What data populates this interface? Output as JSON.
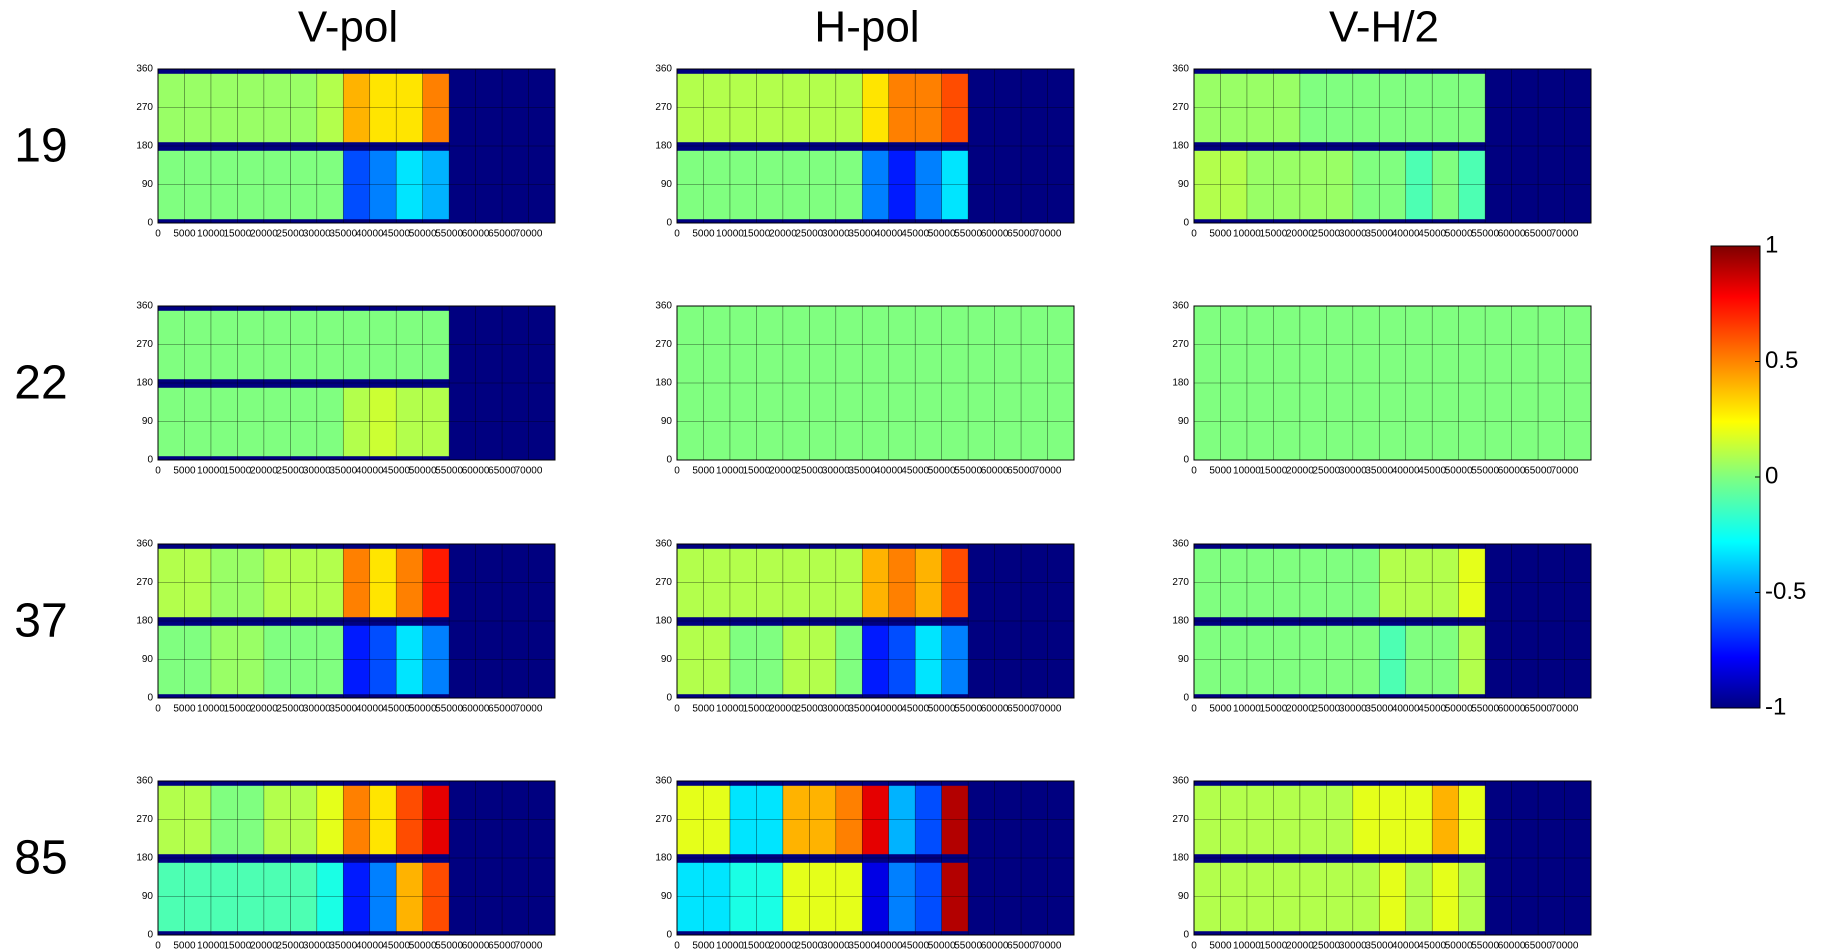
{
  "column_titles": [
    "V-pol",
    "H-pol",
    "V-H/2"
  ],
  "row_labels": [
    "19",
    "22",
    "37",
    "85"
  ],
  "colorbar": {
    "type": "colorbar",
    "lim": [
      -1,
      1
    ],
    "ticks": [
      1,
      0.5,
      0,
      -0.5,
      -1
    ]
  },
  "chart_data": [
    {
      "type": "heatmap",
      "xlim": [
        0,
        75000
      ],
      "ylim": [
        0,
        360
      ],
      "xticks": [
        0,
        5000,
        10000,
        15000,
        20000,
        25000,
        30000,
        35000,
        40000,
        45000,
        50000,
        55000,
        60000,
        65000,
        70000
      ],
      "yticks": [
        0,
        90,
        180,
        270,
        360
      ],
      "grid": true,
      "x_edges": [
        0,
        10000,
        20000,
        30000,
        35000,
        40000,
        45000,
        50000,
        55000,
        75000
      ],
      "y_edges": [
        0,
        10,
        170,
        190,
        350,
        360
      ],
      "z": [
        [
          -1,
          -1,
          -1,
          -1,
          -1,
          -1,
          -1,
          -1,
          -1
        ],
        [
          0,
          0,
          0,
          0,
          -0.6,
          -0.5,
          -0.3,
          -0.4,
          -1
        ],
        [
          -1,
          -1,
          -1,
          -1,
          -1,
          -1,
          -1,
          -1,
          -1
        ],
        [
          0.05,
          0.05,
          0.05,
          0.1,
          0.4,
          0.3,
          0.3,
          0.5,
          -1
        ],
        [
          -1,
          -1,
          -1,
          -1,
          -1,
          -1,
          -1,
          -1,
          -1
        ]
      ]
    },
    {
      "type": "heatmap",
      "xlim": [
        0,
        75000
      ],
      "ylim": [
        0,
        360
      ],
      "xticks": [
        0,
        5000,
        10000,
        15000,
        20000,
        25000,
        30000,
        35000,
        40000,
        45000,
        50000,
        55000,
        60000,
        65000,
        70000
      ],
      "yticks": [
        0,
        90,
        180,
        270,
        360
      ],
      "grid": true,
      "x_edges": [
        0,
        10000,
        20000,
        30000,
        35000,
        40000,
        45000,
        50000,
        55000,
        75000
      ],
      "y_edges": [
        0,
        10,
        170,
        190,
        350,
        360
      ],
      "z": [
        [
          -1,
          -1,
          -1,
          -1,
          -1,
          -1,
          -1,
          -1,
          -1
        ],
        [
          0,
          0,
          0,
          0,
          -0.5,
          -0.7,
          -0.5,
          -0.3,
          -1
        ],
        [
          -1,
          -1,
          -1,
          -1,
          -1,
          -1,
          -1,
          -1,
          -1
        ],
        [
          0.1,
          0.1,
          0.1,
          0.1,
          0.3,
          0.5,
          0.5,
          0.6,
          -1
        ],
        [
          -1,
          -1,
          -1,
          -1,
          -1,
          -1,
          -1,
          -1,
          -1
        ]
      ]
    },
    {
      "type": "heatmap",
      "xlim": [
        0,
        75000
      ],
      "ylim": [
        0,
        360
      ],
      "xticks": [
        0,
        5000,
        10000,
        15000,
        20000,
        25000,
        30000,
        35000,
        40000,
        45000,
        50000,
        55000,
        60000,
        65000,
        70000
      ],
      "yticks": [
        0,
        90,
        180,
        270,
        360
      ],
      "grid": true,
      "x_edges": [
        0,
        10000,
        20000,
        30000,
        35000,
        40000,
        45000,
        50000,
        55000,
        75000
      ],
      "y_edges": [
        0,
        10,
        170,
        190,
        350,
        360
      ],
      "z": [
        [
          -1,
          -1,
          -1,
          -1,
          -1,
          -1,
          -1,
          -1,
          -1
        ],
        [
          0.1,
          0.05,
          0.05,
          0,
          0,
          -0.1,
          0,
          -0.1,
          -1
        ],
        [
          -1,
          -1,
          -1,
          -1,
          -1,
          -1,
          -1,
          -1,
          -1
        ],
        [
          0.05,
          0.05,
          0,
          0,
          0,
          0,
          0,
          0,
          -1
        ],
        [
          -1,
          -1,
          -1,
          -1,
          -1,
          -1,
          -1,
          -1,
          -1
        ]
      ]
    },
    {
      "type": "heatmap",
      "xlim": [
        0,
        75000
      ],
      "ylim": [
        0,
        360
      ],
      "xticks": [
        0,
        5000,
        10000,
        15000,
        20000,
        25000,
        30000,
        35000,
        40000,
        45000,
        50000,
        55000,
        60000,
        65000,
        70000
      ],
      "yticks": [
        0,
        90,
        180,
        270,
        360
      ],
      "grid": true,
      "x_edges": [
        0,
        10000,
        20000,
        30000,
        35000,
        40000,
        45000,
        50000,
        55000,
        75000
      ],
      "y_edges": [
        0,
        10,
        170,
        190,
        350,
        360
      ],
      "z": [
        [
          -1,
          -1,
          -1,
          -1,
          -1,
          -1,
          -1,
          -1,
          -1
        ],
        [
          0,
          0,
          0,
          0,
          0.1,
          0.15,
          0.1,
          0.1,
          -1
        ],
        [
          -1,
          -1,
          -1,
          -1,
          -1,
          -1,
          -1,
          -1,
          -1
        ],
        [
          0,
          0,
          0,
          0,
          0,
          0,
          0,
          0,
          -1
        ],
        [
          -1,
          -1,
          -1,
          -1,
          -1,
          -1,
          -1,
          -1,
          -1
        ]
      ]
    },
    {
      "type": "heatmap",
      "xlim": [
        0,
        75000
      ],
      "ylim": [
        0,
        360
      ],
      "xticks": [
        0,
        5000,
        10000,
        15000,
        20000,
        25000,
        30000,
        35000,
        40000,
        45000,
        50000,
        55000,
        60000,
        65000,
        70000
      ],
      "yticks": [
        0,
        90,
        180,
        270,
        360
      ],
      "grid": true,
      "x_edges": [
        0,
        10000,
        20000,
        30000,
        35000,
        40000,
        45000,
        50000,
        55000,
        75000
      ],
      "y_edges": [
        0,
        10,
        170,
        190,
        350,
        360
      ],
      "z": [
        [
          0,
          0,
          0,
          0,
          0,
          0,
          0,
          0,
          0
        ],
        [
          0,
          0,
          0,
          0,
          0,
          0,
          0,
          0,
          0
        ],
        [
          0,
          0,
          0,
          0,
          0,
          0,
          0,
          0,
          0
        ],
        [
          0,
          0,
          0,
          0,
          0,
          0,
          0,
          0,
          0
        ],
        [
          0,
          0,
          0,
          0,
          0,
          0,
          0,
          0,
          0
        ]
      ]
    },
    {
      "type": "heatmap",
      "xlim": [
        0,
        75000
      ],
      "ylim": [
        0,
        360
      ],
      "xticks": [
        0,
        5000,
        10000,
        15000,
        20000,
        25000,
        30000,
        35000,
        40000,
        45000,
        50000,
        55000,
        60000,
        65000,
        70000
      ],
      "yticks": [
        0,
        90,
        180,
        270,
        360
      ],
      "grid": true,
      "x_edges": [
        0,
        10000,
        20000,
        30000,
        35000,
        40000,
        45000,
        50000,
        55000,
        75000
      ],
      "y_edges": [
        0,
        10,
        170,
        190,
        350,
        360
      ],
      "z": [
        [
          0,
          0,
          0,
          0,
          0,
          0,
          0,
          0,
          0
        ],
        [
          0,
          0,
          0,
          0,
          0,
          0,
          0,
          0,
          0
        ],
        [
          0,
          0,
          0,
          0,
          0,
          0,
          0,
          0,
          0
        ],
        [
          0,
          0,
          0,
          0,
          0,
          0,
          0,
          0,
          0
        ],
        [
          0,
          0,
          0,
          0,
          0,
          0,
          0,
          0,
          0
        ]
      ]
    },
    {
      "type": "heatmap",
      "xlim": [
        0,
        75000
      ],
      "ylim": [
        0,
        360
      ],
      "xticks": [
        0,
        5000,
        10000,
        15000,
        20000,
        25000,
        30000,
        35000,
        40000,
        45000,
        50000,
        55000,
        60000,
        65000,
        70000
      ],
      "yticks": [
        0,
        90,
        180,
        270,
        360
      ],
      "grid": true,
      "x_edges": [
        0,
        10000,
        20000,
        30000,
        35000,
        40000,
        45000,
        50000,
        55000,
        75000
      ],
      "y_edges": [
        0,
        10,
        170,
        190,
        350,
        360
      ],
      "z": [
        [
          -1,
          -1,
          -1,
          -1,
          -1,
          -1,
          -1,
          -1,
          -1
        ],
        [
          0,
          0.05,
          0,
          0,
          -0.7,
          -0.6,
          -0.3,
          -0.5,
          -1
        ],
        [
          -1,
          -1,
          -1,
          -1,
          -1,
          -1,
          -1,
          -1,
          -1
        ],
        [
          0.1,
          0.05,
          0.1,
          0.1,
          0.5,
          0.3,
          0.5,
          0.7,
          -1
        ],
        [
          -1,
          -1,
          -1,
          -1,
          -1,
          -1,
          -1,
          -1,
          -1
        ]
      ]
    },
    {
      "type": "heatmap",
      "xlim": [
        0,
        75000
      ],
      "ylim": [
        0,
        360
      ],
      "xticks": [
        0,
        5000,
        10000,
        15000,
        20000,
        25000,
        30000,
        35000,
        40000,
        45000,
        50000,
        55000,
        60000,
        65000,
        70000
      ],
      "yticks": [
        0,
        90,
        180,
        270,
        360
      ],
      "grid": true,
      "x_edges": [
        0,
        10000,
        20000,
        30000,
        35000,
        40000,
        45000,
        50000,
        55000,
        75000
      ],
      "y_edges": [
        0,
        10,
        170,
        190,
        350,
        360
      ],
      "z": [
        [
          -1,
          -1,
          -1,
          -1,
          -1,
          -1,
          -1,
          -1,
          -1
        ],
        [
          0.1,
          0,
          0.1,
          0,
          -0.7,
          -0.6,
          -0.3,
          -0.5,
          -1
        ],
        [
          -1,
          -1,
          -1,
          -1,
          -1,
          -1,
          -1,
          -1,
          -1
        ],
        [
          0.1,
          0.1,
          0.1,
          0.1,
          0.4,
          0.5,
          0.4,
          0.6,
          -1
        ],
        [
          -1,
          -1,
          -1,
          -1,
          -1,
          -1,
          -1,
          -1,
          -1
        ]
      ]
    },
    {
      "type": "heatmap",
      "xlim": [
        0,
        75000
      ],
      "ylim": [
        0,
        360
      ],
      "xticks": [
        0,
        5000,
        10000,
        15000,
        20000,
        25000,
        30000,
        35000,
        40000,
        45000,
        50000,
        55000,
        60000,
        65000,
        70000
      ],
      "yticks": [
        0,
        90,
        180,
        270,
        360
      ],
      "grid": true,
      "x_edges": [
        0,
        10000,
        20000,
        30000,
        35000,
        40000,
        45000,
        50000,
        55000,
        75000
      ],
      "y_edges": [
        0,
        10,
        170,
        190,
        350,
        360
      ],
      "z": [
        [
          -1,
          -1,
          -1,
          -1,
          -1,
          -1,
          -1,
          -1,
          -1
        ],
        [
          0,
          0,
          0,
          0,
          -0.1,
          0,
          0,
          0.1,
          -1
        ],
        [
          -1,
          -1,
          -1,
          -1,
          -1,
          -1,
          -1,
          -1,
          -1
        ],
        [
          0,
          0,
          0,
          0,
          0.1,
          0.1,
          0.1,
          0.2,
          -1
        ],
        [
          -1,
          -1,
          -1,
          -1,
          -1,
          -1,
          -1,
          -1,
          -1
        ]
      ]
    },
    {
      "type": "heatmap",
      "xlim": [
        0,
        75000
      ],
      "ylim": [
        0,
        360
      ],
      "xticks": [
        0,
        5000,
        10000,
        15000,
        20000,
        25000,
        30000,
        35000,
        40000,
        45000,
        50000,
        55000,
        60000,
        65000,
        70000
      ],
      "yticks": [
        0,
        90,
        180,
        270,
        360
      ],
      "grid": true,
      "x_edges": [
        0,
        10000,
        20000,
        30000,
        35000,
        40000,
        45000,
        50000,
        55000,
        75000
      ],
      "y_edges": [
        0,
        10,
        170,
        190,
        350,
        360
      ],
      "z": [
        [
          -1,
          -1,
          -1,
          -1,
          -1,
          -1,
          -1,
          -1,
          -1
        ],
        [
          -0.1,
          -0.1,
          -0.1,
          -0.2,
          -0.7,
          -0.5,
          0.4,
          0.6,
          -1
        ],
        [
          -1,
          -1,
          -1,
          -1,
          -1,
          -1,
          -1,
          -1,
          -1
        ],
        [
          0.1,
          0,
          0.1,
          0.2,
          0.5,
          0.3,
          0.6,
          0.8,
          -1
        ],
        [
          -1,
          -1,
          -1,
          -1,
          -1,
          -1,
          -1,
          -1,
          -1
        ]
      ]
    },
    {
      "type": "heatmap",
      "xlim": [
        0,
        75000
      ],
      "ylim": [
        0,
        360
      ],
      "xticks": [
        0,
        5000,
        10000,
        15000,
        20000,
        25000,
        30000,
        35000,
        40000,
        45000,
        50000,
        55000,
        60000,
        65000,
        70000
      ],
      "yticks": [
        0,
        90,
        180,
        270,
        360
      ],
      "grid": true,
      "x_edges": [
        0,
        10000,
        20000,
        30000,
        35000,
        40000,
        45000,
        50000,
        55000,
        75000
      ],
      "y_edges": [
        0,
        10,
        170,
        190,
        350,
        360
      ],
      "z": [
        [
          -1,
          -1,
          -1,
          -1,
          -1,
          -1,
          -1,
          -1,
          -1
        ],
        [
          -0.3,
          -0.2,
          0.2,
          0.2,
          -0.8,
          -0.5,
          -0.6,
          0.9,
          -1
        ],
        [
          -1,
          -1,
          -1,
          -1,
          -1,
          -1,
          -1,
          -1,
          -1
        ],
        [
          0.2,
          -0.3,
          0.4,
          0.5,
          0.8,
          -0.4,
          -0.6,
          0.9,
          -1
        ],
        [
          -1,
          -1,
          -1,
          -1,
          -1,
          -1,
          -1,
          -1,
          -1
        ]
      ]
    },
    {
      "type": "heatmap",
      "xlim": [
        0,
        75000
      ],
      "ylim": [
        0,
        360
      ],
      "xticks": [
        0,
        5000,
        10000,
        15000,
        20000,
        25000,
        30000,
        35000,
        40000,
        45000,
        50000,
        55000,
        60000,
        65000,
        70000
      ],
      "yticks": [
        0,
        90,
        180,
        270,
        360
      ],
      "grid": true,
      "x_edges": [
        0,
        10000,
        20000,
        30000,
        35000,
        40000,
        45000,
        50000,
        55000,
        75000
      ],
      "y_edges": [
        0,
        10,
        170,
        190,
        350,
        360
      ],
      "z": [
        [
          -1,
          -1,
          -1,
          -1,
          -1,
          -1,
          -1,
          -1,
          -1
        ],
        [
          0.1,
          0.1,
          0.1,
          0.1,
          0.2,
          0.1,
          0.2,
          0.1,
          -1
        ],
        [
          -1,
          -1,
          -1,
          -1,
          -1,
          -1,
          -1,
          -1,
          -1
        ],
        [
          0.1,
          0.1,
          0.1,
          0.2,
          0.2,
          0.2,
          0.4,
          0.2,
          -1
        ],
        [
          -1,
          -1,
          -1,
          -1,
          -1,
          -1,
          -1,
          -1,
          -1
        ]
      ]
    }
  ]
}
